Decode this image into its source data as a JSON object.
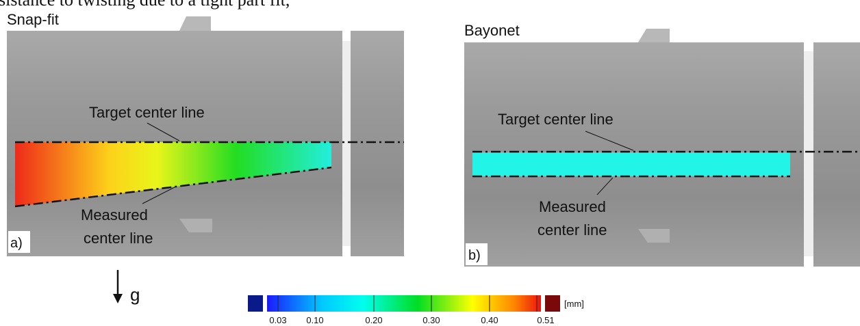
{
  "caption_fragment": "sistance to twisting due to a tight part fit,",
  "panel_a": {
    "title": "Snap-fit",
    "target_label": "Target center line",
    "measured_label_1": "Measured",
    "measured_label_2": "center line",
    "tag": "a)"
  },
  "panel_b": {
    "title": "Bayonet",
    "target_label": "Target center line",
    "measured_label_1": "Measured",
    "measured_label_2": "center line",
    "tag": "b)"
  },
  "gravity_label": "g",
  "colorbar": {
    "ticks": [
      "0.03",
      "0.10",
      "0.20",
      "0.30",
      "0.40",
      "0.51"
    ],
    "unit": "[mm]"
  }
}
